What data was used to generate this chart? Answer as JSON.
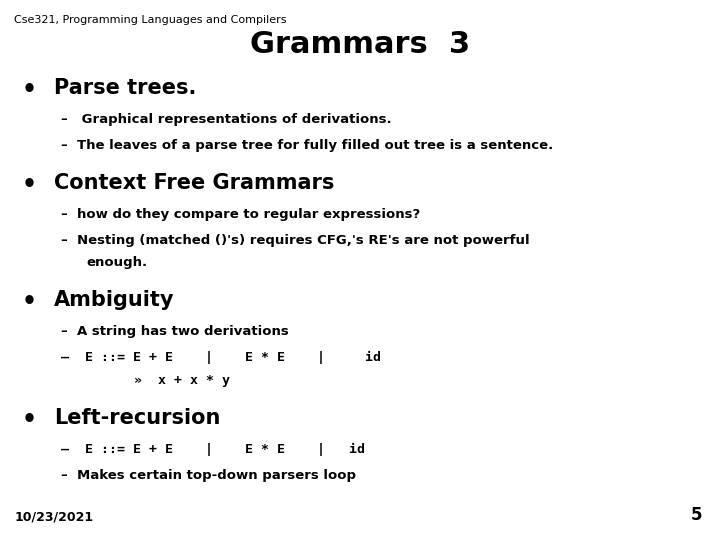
{
  "header": "Cse321, Programming Languages and Compilers",
  "title": "Grammars  3",
  "background_color": "#ffffff",
  "text_color": "#000000",
  "header_fontsize": 8,
  "title_fontsize": 22,
  "bullet_fontsize": 15,
  "sub_fontsize": 9.5,
  "date": "10/23/2021",
  "page": "5"
}
